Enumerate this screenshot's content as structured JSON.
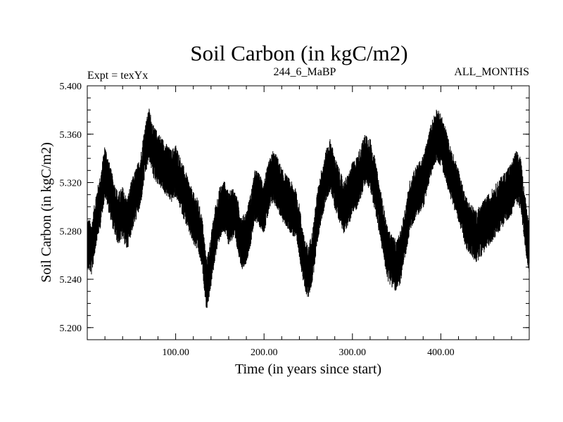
{
  "chart_data": {
    "type": "line",
    "title": "Soil Carbon (in kgC/m2)",
    "subtitle_left": "Expt = texYx",
    "subtitle_center": "244_6_MaBP",
    "subtitle_right": "ALL_MONTHS",
    "xlabel": "Time (in years since start)",
    "ylabel": "Soil Carbon (in kgC/m2)",
    "xlim": [
      0,
      500
    ],
    "ylim": [
      5.19,
      5.4
    ],
    "xticks": [
      100,
      200,
      300,
      400
    ],
    "xtick_labels": [
      "100.00",
      "200.00",
      "300.00",
      "400.00"
    ],
    "yticks": [
      5.2,
      5.24,
      5.28,
      5.32,
      5.36,
      5.4
    ],
    "ytick_labels": [
      "5.200",
      "5.240",
      "5.280",
      "5.320",
      "5.360",
      "5.400"
    ],
    "grid": false,
    "series": [
      {
        "color": "#000000",
        "x": [
          0,
          5,
          10,
          15,
          20,
          25,
          30,
          35,
          40,
          45,
          50,
          55,
          60,
          65,
          70,
          75,
          80,
          85,
          90,
          95,
          100,
          105,
          110,
          115,
          120,
          125,
          130,
          135,
          140,
          145,
          150,
          155,
          160,
          165,
          170,
          175,
          180,
          185,
          190,
          195,
          200,
          205,
          210,
          215,
          220,
          225,
          230,
          235,
          240,
          245,
          250,
          255,
          260,
          265,
          270,
          275,
          280,
          285,
          290,
          295,
          300,
          305,
          310,
          315,
          320,
          325,
          330,
          335,
          340,
          345,
          350,
          355,
          360,
          365,
          370,
          375,
          380,
          385,
          390,
          395,
          400,
          405,
          410,
          415,
          420,
          425,
          430,
          435,
          440,
          445,
          450,
          455,
          460,
          465,
          470,
          475,
          480,
          485,
          490,
          495,
          500
        ],
        "y": [
          5.27,
          5.265,
          5.29,
          5.305,
          5.33,
          5.315,
          5.3,
          5.29,
          5.295,
          5.285,
          5.3,
          5.31,
          5.32,
          5.345,
          5.36,
          5.345,
          5.34,
          5.335,
          5.33,
          5.325,
          5.33,
          5.32,
          5.31,
          5.3,
          5.29,
          5.285,
          5.27,
          5.235,
          5.255,
          5.28,
          5.295,
          5.3,
          5.29,
          5.295,
          5.285,
          5.27,
          5.275,
          5.29,
          5.31,
          5.305,
          5.3,
          5.315,
          5.325,
          5.32,
          5.31,
          5.305,
          5.3,
          5.295,
          5.28,
          5.255,
          5.245,
          5.26,
          5.29,
          5.31,
          5.325,
          5.335,
          5.32,
          5.31,
          5.3,
          5.305,
          5.315,
          5.32,
          5.33,
          5.34,
          5.335,
          5.32,
          5.3,
          5.28,
          5.26,
          5.255,
          5.25,
          5.26,
          5.28,
          5.3,
          5.31,
          5.315,
          5.32,
          5.335,
          5.35,
          5.36,
          5.355,
          5.345,
          5.33,
          5.32,
          5.31,
          5.295,
          5.285,
          5.28,
          5.275,
          5.28,
          5.285,
          5.29,
          5.295,
          5.3,
          5.305,
          5.31,
          5.315,
          5.325,
          5.32,
          5.29,
          5.265
        ],
        "noise_amplitude": 0.022
      }
    ]
  }
}
